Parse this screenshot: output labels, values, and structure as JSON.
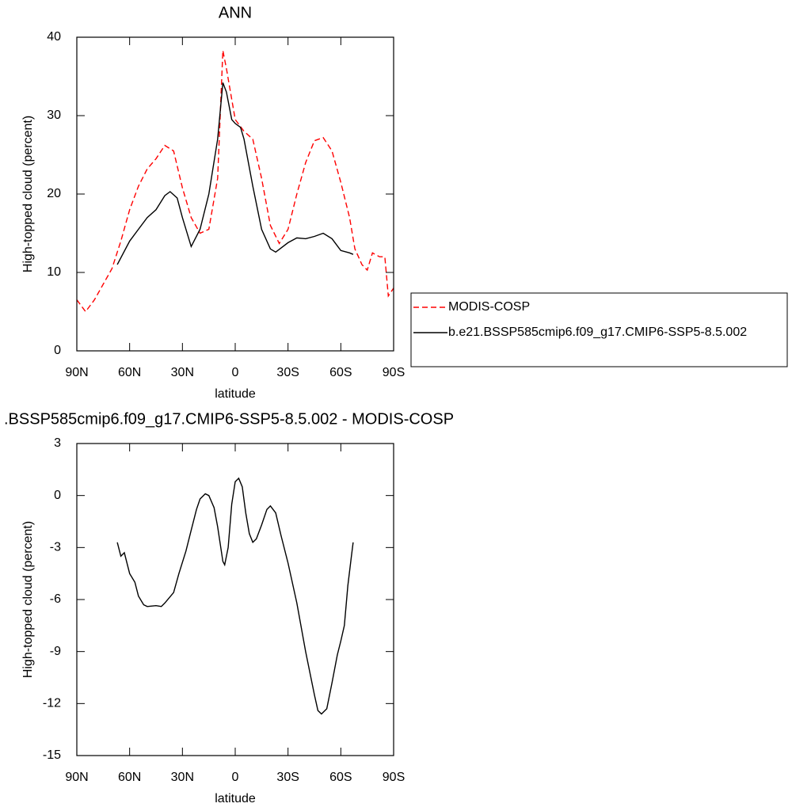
{
  "chart_data": [
    {
      "type": "line",
      "title": "ANN",
      "xlabel": "latitude",
      "ylabel": "High-topped cloud (percent)",
      "xlim": [
        90,
        -90
      ],
      "ylim": [
        0,
        40
      ],
      "xticks": [
        {
          "value": 90,
          "label": "90N"
        },
        {
          "value": 60,
          "label": "60N"
        },
        {
          "value": 30,
          "label": "30N"
        },
        0,
        {
          "value": -30,
          "label": "30S"
        },
        {
          "value": -60,
          "label": "60S"
        },
        {
          "value": -90,
          "label": "90S"
        }
      ],
      "yticks": [
        0,
        10,
        20,
        30,
        40
      ],
      "legend": "right",
      "series": [
        {
          "name": "MODIS-COSP",
          "color": "#ff0000",
          "dash": "dashed",
          "x": [
            90,
            85,
            80,
            75,
            70,
            65,
            60,
            55,
            50,
            45,
            40,
            35,
            30,
            25,
            20,
            15,
            10,
            7,
            5,
            0,
            -5,
            -10,
            -15,
            -20,
            -25,
            -30,
            -35,
            -40,
            -45,
            -50,
            -55,
            -60,
            -65,
            -68,
            -70,
            -72,
            -75,
            -78,
            -82,
            -85,
            -87,
            -90
          ],
          "values": [
            6.5,
            5.0,
            6.5,
            8.5,
            10.5,
            14,
            18,
            21,
            23.2,
            24.5,
            26.2,
            25.5,
            20.8,
            17,
            15,
            15.5,
            22,
            38.3,
            36,
            29.5,
            28,
            27,
            22,
            16,
            13.7,
            15.5,
            20,
            24,
            26.8,
            27.2,
            25.5,
            21.5,
            17,
            13,
            12,
            11,
            10.3,
            12.5,
            12,
            12,
            7,
            8
          ]
        },
        {
          "name": "b.e21.BSSP585cmip6.f09_g17.CMIP6-SSP5-8.5.002",
          "color": "#000000",
          "dash": "solid",
          "x": [
            67,
            60,
            55,
            50,
            45,
            40,
            37,
            33,
            30,
            25,
            20,
            15,
            10,
            7,
            5,
            2,
            0,
            -3,
            -5,
            -10,
            -15,
            -20,
            -23,
            -30,
            -35,
            -40,
            -45,
            -50,
            -55,
            -60,
            -65,
            -67
          ],
          "values": [
            11,
            14,
            15.5,
            17,
            18,
            19.8,
            20.3,
            19.5,
            17,
            13.3,
            15.5,
            20,
            27,
            34.2,
            33,
            29.5,
            29,
            28.5,
            27,
            21,
            15.5,
            13,
            12.6,
            13.8,
            14.4,
            14.3,
            14.6,
            15,
            14.3,
            12.8,
            12.5,
            12.3
          ]
        }
      ]
    },
    {
      "type": "line",
      "title": ".BSSP585cmip6.f09_g17.CMIP6-SSP5-8.5.002 - MODIS-COSP",
      "xlabel": "latitude",
      "ylabel": "High-topped cloud (percent)",
      "xlim": [
        90,
        -90
      ],
      "ylim": [
        -15,
        3
      ],
      "xticks": [
        {
          "value": 90,
          "label": "90N"
        },
        {
          "value": 60,
          "label": "60N"
        },
        {
          "value": 30,
          "label": "30N"
        },
        0,
        {
          "value": -30,
          "label": "30S"
        },
        {
          "value": -60,
          "label": "60S"
        },
        {
          "value": -90,
          "label": "90S"
        }
      ],
      "yticks": [
        -15,
        -12,
        -9,
        -6,
        -3,
        0,
        3
      ],
      "series": [
        {
          "color": "#000000",
          "dash": "solid",
          "x": [
            67,
            65,
            63,
            60,
            57,
            55,
            52,
            50,
            45,
            42,
            40,
            35,
            32,
            28,
            25,
            22,
            20,
            17,
            15,
            12,
            10,
            7,
            6,
            4,
            2,
            0,
            -2,
            -4,
            -6,
            -8,
            -10,
            -12,
            -15,
            -18,
            -20,
            -23,
            -26,
            -30,
            -35,
            -40,
            -45,
            -47,
            -49,
            -52,
            -55,
            -58,
            -60,
            -62,
            -64,
            -66,
            -67
          ],
          "values": [
            -2.7,
            -3.5,
            -3.3,
            -4.5,
            -5.0,
            -5.8,
            -6.3,
            -6.4,
            -6.35,
            -6.4,
            -6.2,
            -5.6,
            -4.5,
            -3.2,
            -2.0,
            -0.8,
            -0.2,
            0.1,
            0,
            -0.7,
            -1.8,
            -3.8,
            -4.0,
            -3.0,
            -0.5,
            0.8,
            1.0,
            0.5,
            -1.0,
            -2.2,
            -2.7,
            -2.5,
            -1.7,
            -0.8,
            -0.6,
            -1.0,
            -2.3,
            -3.9,
            -6.2,
            -9.0,
            -11.5,
            -12.4,
            -12.6,
            -12.3,
            -10.8,
            -9.2,
            -8.4,
            -7.5,
            -5.2,
            -3.5,
            -2.7
          ]
        }
      ]
    }
  ]
}
